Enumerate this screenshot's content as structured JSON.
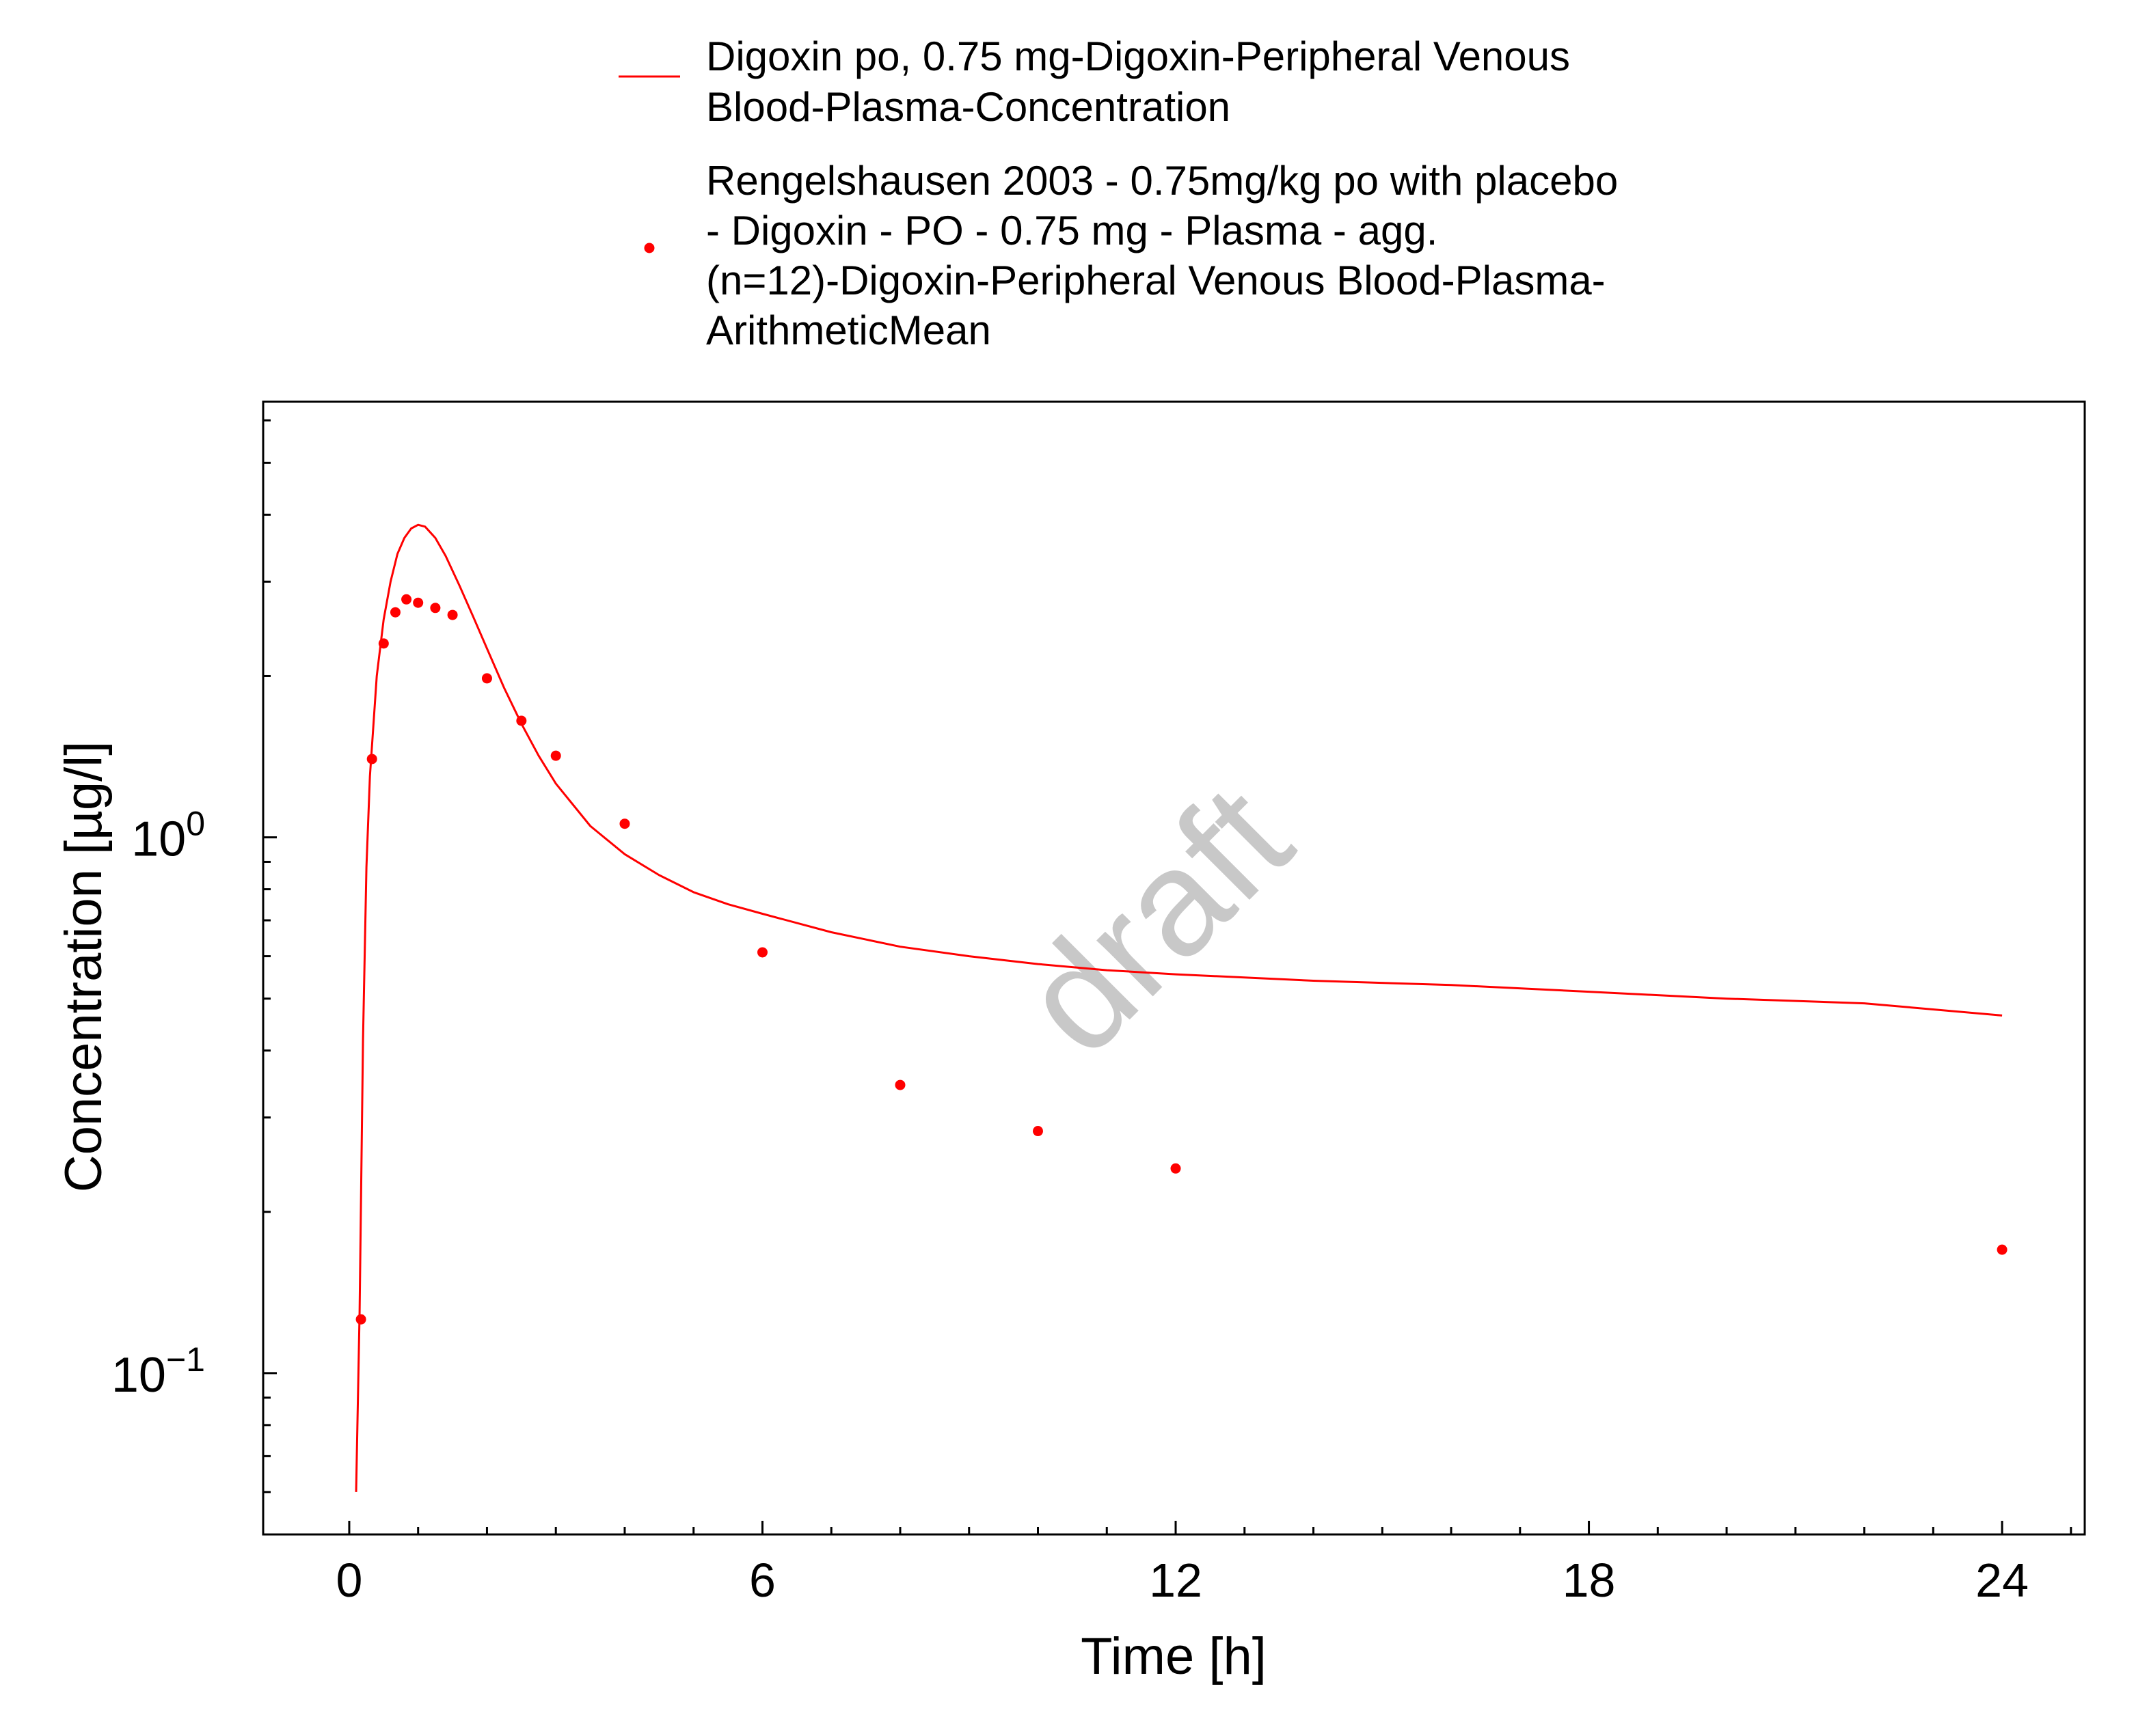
{
  "chart_data": {
    "type": "line",
    "title": "",
    "xlabel": "Time [h]",
    "ylabel": "Concentration [µg/l]",
    "xlim": [
      -1.25,
      25.2
    ],
    "ylim": [
      0.05,
      6.5
    ],
    "y_scale": "log",
    "grid": false,
    "legend_position": "top, above plot",
    "x_ticks": [
      "0",
      "6",
      "12",
      "18",
      "24"
    ],
    "y_ticks": [
      {
        "base": "10",
        "exp": "0"
      },
      {
        "base": "10",
        "exp": "−1"
      }
    ],
    "watermark": "draft",
    "series": [
      {
        "name": "Digoxin po, 0.75 mg-Digoxin-Peripheral Venous Blood-Plasma-Concentration",
        "legend_lines": [
          "Digoxin po, 0.75 mg-Digoxin-Peripheral Venous",
          "Blood-Plasma-Concentration"
        ],
        "kind": "line",
        "color": "#ff0000",
        "x": [
          0.1,
          0.15,
          0.2,
          0.25,
          0.3,
          0.4,
          0.5,
          0.6,
          0.7,
          0.8,
          0.9,
          1.0,
          1.1,
          1.25,
          1.4,
          1.6,
          1.8,
          2.0,
          2.25,
          2.5,
          2.75,
          3.0,
          3.5,
          4.0,
          4.5,
          5.0,
          5.5,
          6.0,
          7.0,
          8.0,
          9.0,
          10.0,
          11.0,
          12.0,
          14.0,
          16.0,
          18.0,
          20.0,
          22.0,
          24.0
        ],
        "values": [
          0.06,
          0.13,
          0.42,
          0.88,
          1.3,
          2.0,
          2.55,
          3.0,
          3.38,
          3.62,
          3.77,
          3.83,
          3.8,
          3.62,
          3.35,
          2.95,
          2.58,
          2.25,
          1.9,
          1.63,
          1.42,
          1.26,
          1.05,
          0.93,
          0.85,
          0.79,
          0.75,
          0.72,
          0.665,
          0.625,
          0.6,
          0.58,
          0.565,
          0.555,
          0.54,
          0.53,
          0.515,
          0.5,
          0.49,
          0.465
        ]
      },
      {
        "name": "Rengelshausen 2003 - 0.75mg/kg po with placebo - Digoxin - PO - 0.75 mg - Plasma - agg. (n=12)-Digoxin-Peripheral Venous Blood-Plasma-ArithmeticMean",
        "legend_lines": [
          "Rengelshausen 2003 - 0.75mg/kg po with placebo",
          "- Digoxin - PO - 0.75 mg - Plasma - agg.",
          "(n=12)-Digoxin-Peripheral Venous Blood-Plasma-",
          "ArithmeticMean"
        ],
        "kind": "scatter",
        "color": "#ff0000",
        "x": [
          0.17,
          0.33,
          0.5,
          0.67,
          0.83,
          1.0,
          1.25,
          1.5,
          2.0,
          2.5,
          3.0,
          4.0,
          6.0,
          8.0,
          10.0,
          12.0,
          24.0
        ],
        "values": [
          0.126,
          1.4,
          2.3,
          2.63,
          2.78,
          2.74,
          2.68,
          2.6,
          1.98,
          1.65,
          1.42,
          1.06,
          0.61,
          0.345,
          0.283,
          0.241,
          0.17
        ]
      }
    ]
  }
}
